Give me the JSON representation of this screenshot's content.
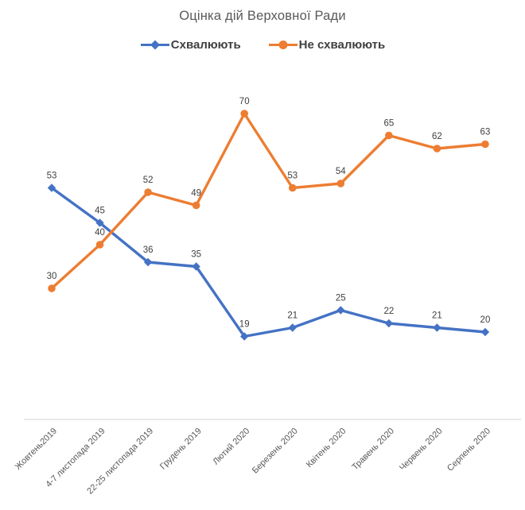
{
  "title": "Оцінка дій Верховної Ради",
  "legend": {
    "items": [
      {
        "label": "Схвалюють",
        "color": "#4472C4",
        "marker": "diamond"
      },
      {
        "label": "Не схвалюють",
        "color": "#ED7D31",
        "marker": "circle"
      }
    ]
  },
  "colors": {
    "approve_blue": "#4472C4",
    "disapprove_orange": "#ED7D31",
    "title_gray": "#595959",
    "data_label": "#404040",
    "axis_label": "#595959",
    "axis_line": "#D9D9D9",
    "background": "#FFFFFF"
  },
  "chart_data": {
    "type": "line",
    "title": "Оцінка дій Верховної Ради",
    "categories": [
      "Жовтень2019",
      "4-7 листопада 2019",
      "22-25 листопада 2019",
      "Грудень 2019",
      "Лютий 2020",
      "Березень 2020",
      "Квітень 2020",
      "Травень 2020",
      "Червень 2020",
      "Серпень 2020"
    ],
    "series": [
      {
        "name": "Схвалюють",
        "color": "#4472C4",
        "marker": "diamond",
        "values": [
          53,
          45,
          36,
          35,
          19,
          21,
          25,
          22,
          21,
          20
        ]
      },
      {
        "name": "Не схвалюють",
        "color": "#ED7D31",
        "marker": "circle",
        "values": [
          30,
          40,
          52,
          49,
          70,
          53,
          54,
          65,
          62,
          63
        ]
      }
    ],
    "xlabel": "",
    "ylabel": "",
    "ylim": [
      0,
      80
    ],
    "grid": false,
    "y_axis_visible": false,
    "data_labels": true,
    "legend_position": "top",
    "x_label_rotation_deg": 45
  }
}
